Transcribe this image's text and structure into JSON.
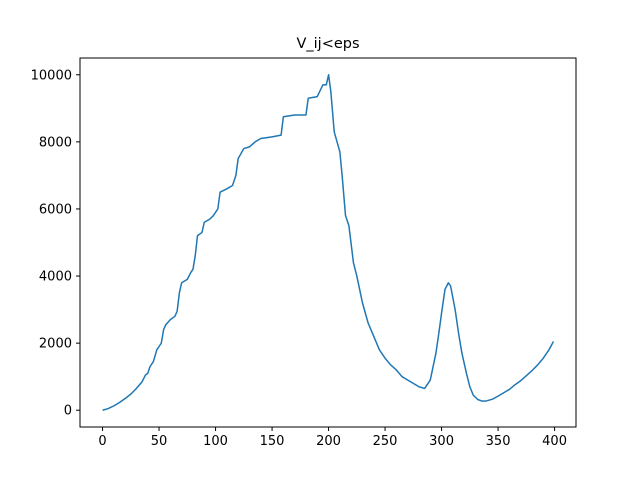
{
  "chart_data": {
    "type": "line",
    "title": "V_ij<eps",
    "x": [
      0,
      5,
      10,
      15,
      20,
      25,
      30,
      35,
      38,
      40,
      42,
      45,
      48,
      50,
      52,
      54,
      56,
      60,
      64,
      66,
      68,
      70,
      75,
      78,
      80,
      82,
      84,
      88,
      90,
      95,
      98,
      100,
      102,
      104,
      110,
      115,
      118,
      120,
      125,
      130,
      135,
      140,
      150,
      158,
      160,
      170,
      180,
      182,
      190,
      195,
      198,
      200,
      202,
      205,
      210,
      212,
      215,
      218,
      222,
      225,
      230,
      235,
      240,
      245,
      250,
      255,
      260,
      265,
      270,
      275,
      280,
      285,
      290,
      295,
      298,
      300,
      303,
      306,
      308,
      312,
      315,
      318,
      322,
      325,
      328,
      332,
      336,
      340,
      345,
      350,
      355,
      360,
      365,
      370,
      375,
      380,
      385,
      390,
      395,
      399
    ],
    "series": [
      {
        "color": "#1f77b4",
        "values": [
          0,
          50,
          130,
          230,
          350,
          480,
          650,
          850,
          1050,
          1100,
          1300,
          1450,
          1800,
          1900,
          2000,
          2400,
          2550,
          2700,
          2800,
          2950,
          3500,
          3800,
          3900,
          4100,
          4200,
          4600,
          5200,
          5300,
          5600,
          5700,
          5800,
          5900,
          6000,
          6500,
          6600,
          6700,
          7000,
          7500,
          7800,
          7850,
          8000,
          8100,
          8150,
          8200,
          8750,
          8800,
          8800,
          9300,
          9350,
          9700,
          9700,
          10000,
          9500,
          8300,
          7700,
          7000,
          5800,
          5500,
          4400,
          4000,
          3200,
          2600,
          2200,
          1800,
          1550,
          1350,
          1200,
          1000,
          900,
          800,
          700,
          650,
          900,
          1700,
          2400,
          2900,
          3600,
          3800,
          3700,
          3000,
          2300,
          1700,
          1100,
          700,
          450,
          320,
          270,
          280,
          330,
          420,
          520,
          620,
          760,
          880,
          1030,
          1180,
          1350,
          1550,
          1800,
          2050
        ]
      }
    ],
    "xlim": [
      -19.95,
      418.95
    ],
    "xticks": [
      0,
      50,
      100,
      150,
      200,
      250,
      300,
      350,
      400
    ],
    "ylim": [
      -500,
      10500
    ],
    "yticks": [
      0,
      2000,
      4000,
      6000,
      8000,
      10000
    ]
  }
}
